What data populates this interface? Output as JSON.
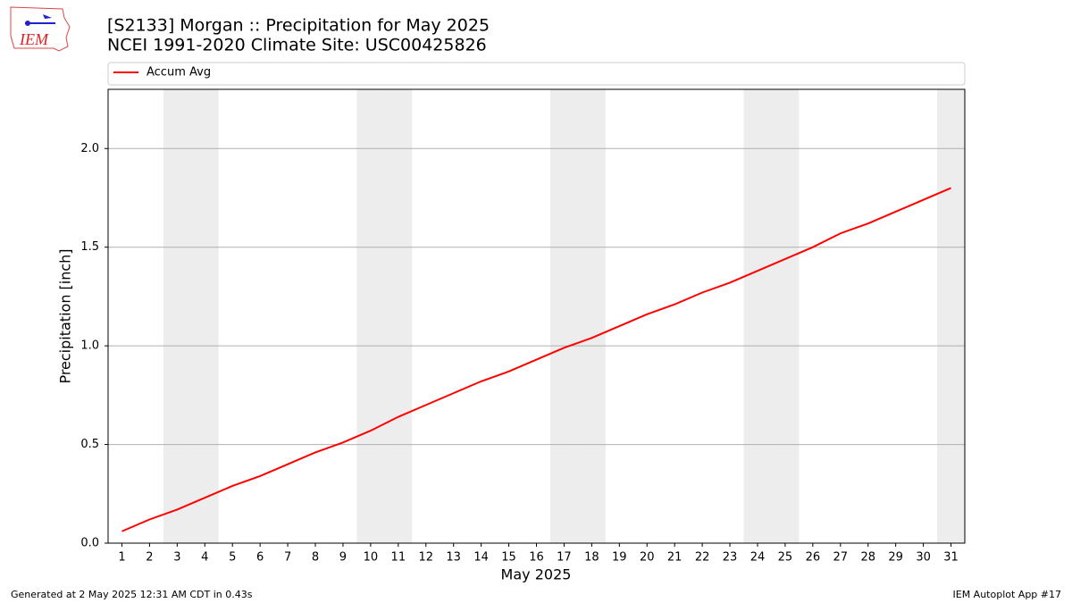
{
  "logo_text": "IEM",
  "footer_left": "Generated at 2 May 2025 12:31 AM CDT in 0.43s",
  "footer_right": "IEM Autoplot App #17",
  "chart_data": {
    "type": "line",
    "title": "[S2133] Morgan :: Precipitation for May 2025",
    "subtitle": "NCEI 1991-2020 Climate Site: USC00425826",
    "x_label": "May 2025",
    "y_label": "Precipitation [inch]",
    "x": [
      1,
      2,
      3,
      4,
      5,
      6,
      7,
      8,
      9,
      10,
      11,
      12,
      13,
      14,
      15,
      16,
      17,
      18,
      19,
      20,
      21,
      22,
      23,
      24,
      25,
      26,
      27,
      28,
      29,
      30,
      31
    ],
    "series": [
      {
        "name": "Accum Avg",
        "color": "#ff0000",
        "values": [
          0.06,
          0.12,
          0.17,
          0.23,
          0.29,
          0.34,
          0.4,
          0.46,
          0.51,
          0.57,
          0.64,
          0.7,
          0.76,
          0.82,
          0.87,
          0.93,
          0.99,
          1.04,
          1.1,
          1.16,
          1.21,
          1.27,
          1.32,
          1.38,
          1.44,
          1.5,
          1.57,
          1.62,
          1.68,
          1.74,
          1.8
        ]
      }
    ],
    "xlim": [
      0.5,
      31.5
    ],
    "xticks": [
      1,
      2,
      3,
      4,
      5,
      6,
      7,
      8,
      9,
      10,
      11,
      12,
      13,
      14,
      15,
      16,
      17,
      18,
      19,
      20,
      21,
      22,
      23,
      24,
      25,
      26,
      27,
      28,
      29,
      30,
      31
    ],
    "ylim": [
      0,
      2.3
    ],
    "yticks": [
      {
        "value": 0,
        "label": "0.0"
      },
      0.5,
      {
        "value": 1,
        "label": "1.0"
      },
      1.5,
      {
        "value": 2,
        "label": "2.0"
      }
    ],
    "grid": true,
    "shaded_days": [
      3,
      4,
      10,
      11,
      17,
      18,
      24,
      25,
      31
    ],
    "shade_color": "#ededed",
    "legend": "top"
  }
}
